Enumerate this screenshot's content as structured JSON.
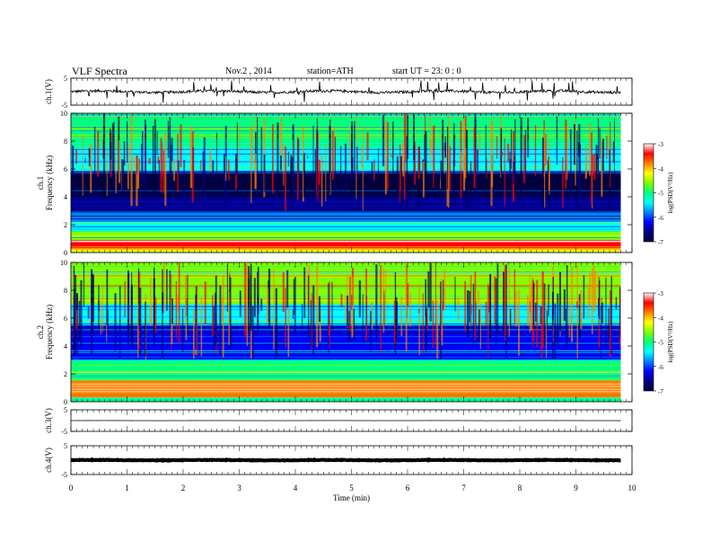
{
  "header": {
    "title": "VLF  Spectra",
    "date": "Nov.2  , 2014",
    "station": "station=ATH",
    "start": "start  UT  =    23: 0  : 0"
  },
  "chart_data": [
    {
      "type": "line",
      "panel": "ch1-waveform",
      "ylabel": "ch.1(V)",
      "y_ticks": [
        "5",
        "-5"
      ],
      "ylim": [
        -5,
        5
      ],
      "xlim": [
        0,
        10
      ],
      "data_extent_min": 9.8,
      "series": [
        {
          "baseline": 0,
          "noise_amplitude": 1,
          "spike_amplitude": 2.5
        }
      ]
    },
    {
      "type": "heatmap",
      "panel": "ch1-spectrogram",
      "ylabel_lines": [
        "ch.1",
        "Frequency  (kHz)"
      ],
      "y_ticks": [
        "0",
        "2",
        "4",
        "6",
        "8",
        "10"
      ],
      "ylim": [
        0,
        10
      ],
      "xlim": [
        0,
        10
      ],
      "data_extent_min": 9.8,
      "colorbar": {
        "label": "log(PSD(V²/Hz)",
        "ticks": [
          "-3",
          "-4",
          "-5",
          "-6",
          "-7"
        ],
        "range": [
          -7,
          -3
        ]
      },
      "bands_khz": [
        {
          "from": 0.0,
          "to": 0.3,
          "level": -4.3
        },
        {
          "from": 0.3,
          "to": 0.9,
          "level": -3.4
        },
        {
          "from": 0.9,
          "to": 1.5,
          "level": -4.8
        },
        {
          "from": 1.5,
          "to": 2.2,
          "level": -5.3
        },
        {
          "from": 2.2,
          "to": 3.0,
          "level": -5.9
        },
        {
          "from": 3.0,
          "to": 4.0,
          "level": -6.6
        },
        {
          "from": 4.0,
          "to": 5.8,
          "level": -6.9
        },
        {
          "from": 5.8,
          "to": 7.5,
          "level": -5.5
        },
        {
          "from": 7.5,
          "to": 10.0,
          "level": -5.0
        }
      ]
    },
    {
      "type": "heatmap",
      "panel": "ch2-spectrogram",
      "ylabel_lines": [
        "ch.2",
        "Frequency  (kHz)"
      ],
      "y_ticks": [
        "0",
        "2",
        "4",
        "6",
        "8",
        "10"
      ],
      "ylim": [
        0,
        10
      ],
      "xlim": [
        0,
        10
      ],
      "data_extent_min": 9.8,
      "colorbar": {
        "label": "log(PSD(V²/Hz)",
        "ticks": [
          "-3",
          "-4",
          "-5",
          "-6",
          "-7"
        ],
        "range": [
          -7,
          -3
        ]
      },
      "bands_khz": [
        {
          "from": 0.0,
          "to": 0.3,
          "level": -5.0
        },
        {
          "from": 0.3,
          "to": 1.5,
          "level": -3.8
        },
        {
          "from": 1.5,
          "to": 3.0,
          "level": -4.9
        },
        {
          "from": 3.0,
          "to": 5.5,
          "level": -6.3
        },
        {
          "from": 5.5,
          "to": 7.0,
          "level": -5.5
        },
        {
          "from": 7.0,
          "to": 10.0,
          "level": -4.6
        }
      ]
    },
    {
      "type": "line",
      "panel": "ch3-waveform",
      "ylabel": "ch.3(V)",
      "y_ticks": [
        "5",
        "-5"
      ],
      "ylim": [
        -5,
        5
      ],
      "xlim": [
        0,
        10
      ],
      "data_extent_min": 9.8,
      "series": [
        {
          "baseline": 0,
          "noise_amplitude": 0.05
        }
      ]
    },
    {
      "type": "line",
      "panel": "ch4-waveform",
      "ylabel": "ch.4(V)",
      "y_ticks": [
        "5",
        "-5"
      ],
      "ylim": [
        -5,
        5
      ],
      "xlim": [
        0,
        10
      ],
      "data_extent_min": 9.8,
      "series": [
        {
          "baseline": 0,
          "noise_amplitude": 0.2
        }
      ]
    }
  ],
  "x_axis": {
    "label": "Time  (min)",
    "ticks": [
      "0",
      "1",
      "2",
      "3",
      "4",
      "5",
      "6",
      "7",
      "8",
      "9",
      "10"
    ]
  },
  "colors": {
    "colormap": [
      "#000040",
      "#000080",
      "#0000ff",
      "#0080ff",
      "#00ffff",
      "#00ff80",
      "#80ff00",
      "#ffff00",
      "#ff8000",
      "#ff0000",
      "#ffffff"
    ]
  }
}
